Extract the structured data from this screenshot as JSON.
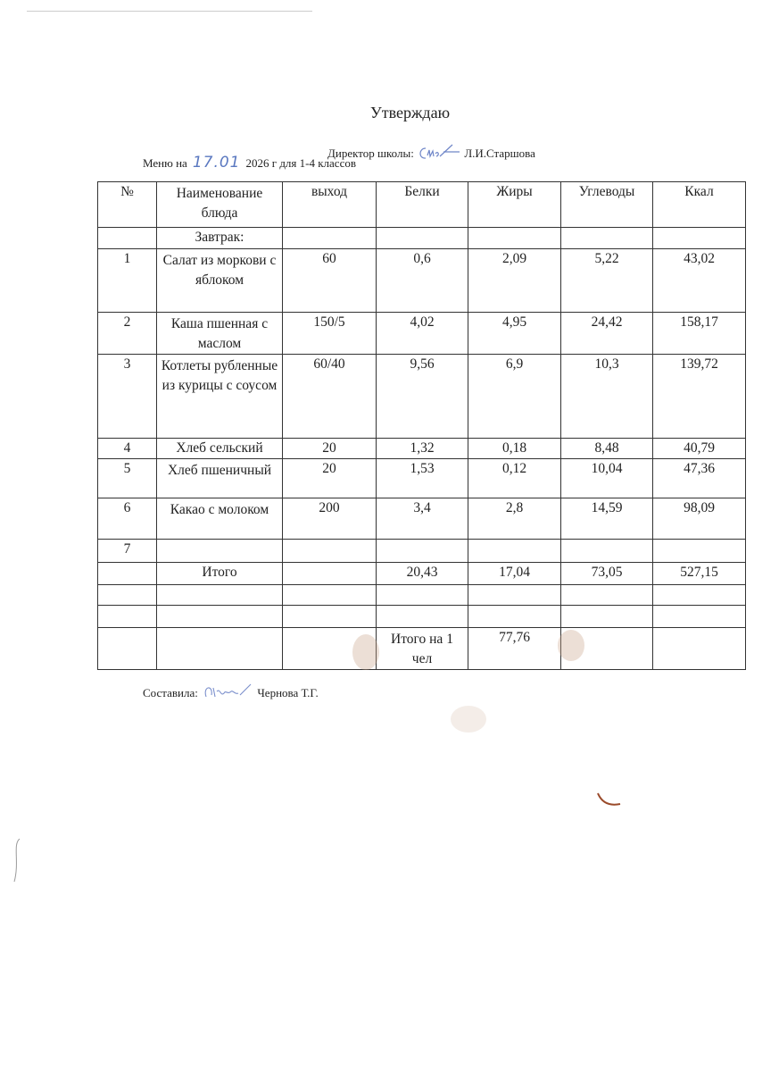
{
  "header": {
    "approve": "Утверждаю",
    "director_label": "Директор школы:",
    "director_name": "Л.И.Старшова",
    "menu_prefix": "Меню на",
    "menu_date_handwritten": "17.01",
    "menu_suffix": "2026 г для 1-4 классов"
  },
  "table": {
    "columns": [
      "№",
      "Наименование блюда",
      "выход",
      "Белки",
      "Жиры",
      "Углеводы",
      "Ккал"
    ],
    "section": "Завтрак:",
    "rows": [
      {
        "n": "1",
        "name": "Салат из моркови с яблоком",
        "out": "60",
        "protein": "0,6",
        "fat": "2,09",
        "carbs": "5,22",
        "kcal": "43,02"
      },
      {
        "n": "2",
        "name": "Каша пшенная с маслом",
        "out": "150/5",
        "protein": "4,02",
        "fat": "4,95",
        "carbs": "24,42",
        "kcal": "158,17"
      },
      {
        "n": "3",
        "name": "Котлеты рубленные из курицы с соусом",
        "out": "60/40",
        "protein": "9,56",
        "fat": "6,9",
        "carbs": "10,3",
        "kcal": "139,72"
      },
      {
        "n": "4",
        "name": "Хлеб сельский",
        "out": "20",
        "protein": "1,32",
        "fat": "0,18",
        "carbs": "8,48",
        "kcal": "40,79"
      },
      {
        "n": "5",
        "name": "Хлеб пшеничный",
        "out": "20",
        "protein": "1,53",
        "fat": "0,12",
        "carbs": "10,04",
        "kcal": "47,36"
      },
      {
        "n": "6",
        "name": "Какао с молоком",
        "out": "200",
        "protein": "3,4",
        "fat": "2,8",
        "carbs": "14,59",
        "kcal": "98,09"
      },
      {
        "n": "7",
        "name": "",
        "out": "",
        "protein": "",
        "fat": "",
        "carbs": "",
        "kcal": ""
      }
    ],
    "total": {
      "label": "Итого",
      "protein": "20,43",
      "fat": "17,04",
      "carbs": "73,05",
      "kcal": "527,15"
    },
    "per_person": {
      "label": "Итого на 1 чел",
      "value": "77,76"
    }
  },
  "footer": {
    "compiled_label": "Составила:",
    "compiled_name": "Чернова Т.Г."
  },
  "colors": {
    "ink": "#222222",
    "handwriting": "#5a78c0"
  }
}
